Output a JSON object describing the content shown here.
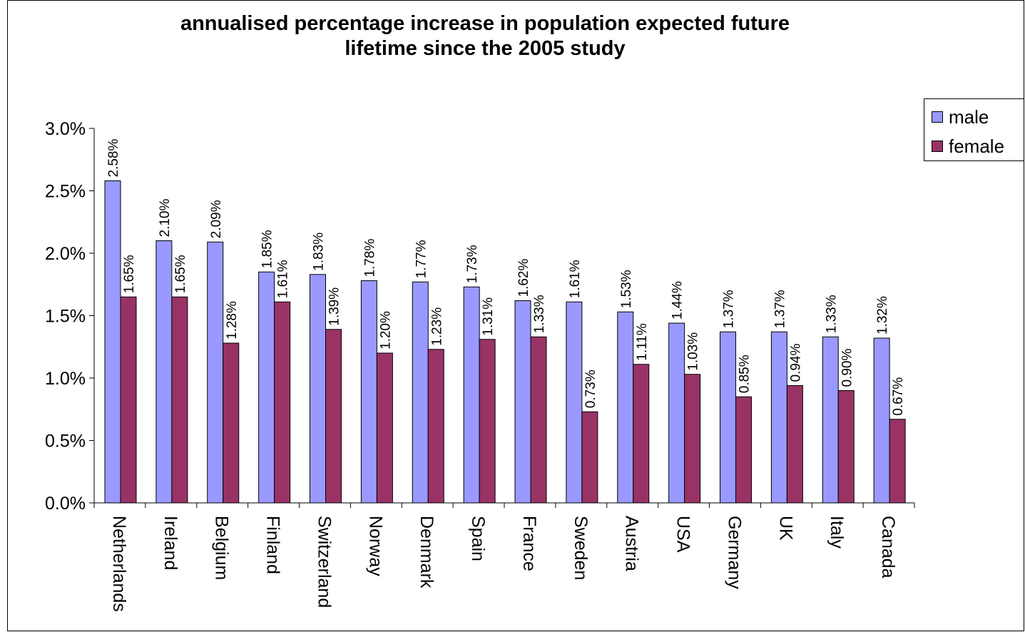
{
  "chart_data": {
    "type": "bar",
    "title": "annualised percentage increase in population expected future lifetime since the 2005 study",
    "title_lines": [
      "annualised percentage increase in population expected future",
      "lifetime since the 2005 study"
    ],
    "categories": [
      "Netherlands",
      "Ireland",
      "Belgium",
      "Finland",
      "Switzerland",
      "Norway",
      "Denmark",
      "Spain",
      "France",
      "Sweden",
      "Austria",
      "USA",
      "Germany",
      "UK",
      "Italy",
      "Canada"
    ],
    "series": [
      {
        "name": "male",
        "color": "#9999ff",
        "values": [
          2.58,
          2.1,
          2.09,
          1.85,
          1.83,
          1.78,
          1.77,
          1.73,
          1.62,
          1.61,
          1.53,
          1.44,
          1.37,
          1.37,
          1.33,
          1.32
        ],
        "labels": [
          "2.58%",
          "2.10%",
          "2.09%",
          "1.85%",
          "1.83%",
          "1.78%",
          "1.77%",
          "1.73%",
          "1.62%",
          "1.61%",
          "1.53%",
          "1.44%",
          "1.37%",
          "1.37%",
          "1.33%",
          "1.32%"
        ]
      },
      {
        "name": "female",
        "color": "#993366",
        "values": [
          1.65,
          1.65,
          1.28,
          1.61,
          1.39,
          1.2,
          1.23,
          1.31,
          1.33,
          0.73,
          1.11,
          1.03,
          0.85,
          0.94,
          0.9,
          0.67
        ],
        "labels": [
          "1.65%",
          "1.65%",
          "1.28%",
          "1.61%",
          "1.39%",
          "1.20%",
          "1.23%",
          "1.31%",
          "1.33%",
          "0.73%",
          "1.11%",
          "1.03%",
          "0.85%",
          "0.94%",
          "0.90%",
          "0.67%"
        ]
      }
    ],
    "yticks": [
      "0.0%",
      "0.5%",
      "1.0%",
      "1.5%",
      "2.0%",
      "2.5%",
      "3.0%"
    ],
    "ylim": [
      0,
      3.0
    ],
    "xlabel": "",
    "ylabel": "",
    "grid": false,
    "legend_position": "right"
  }
}
